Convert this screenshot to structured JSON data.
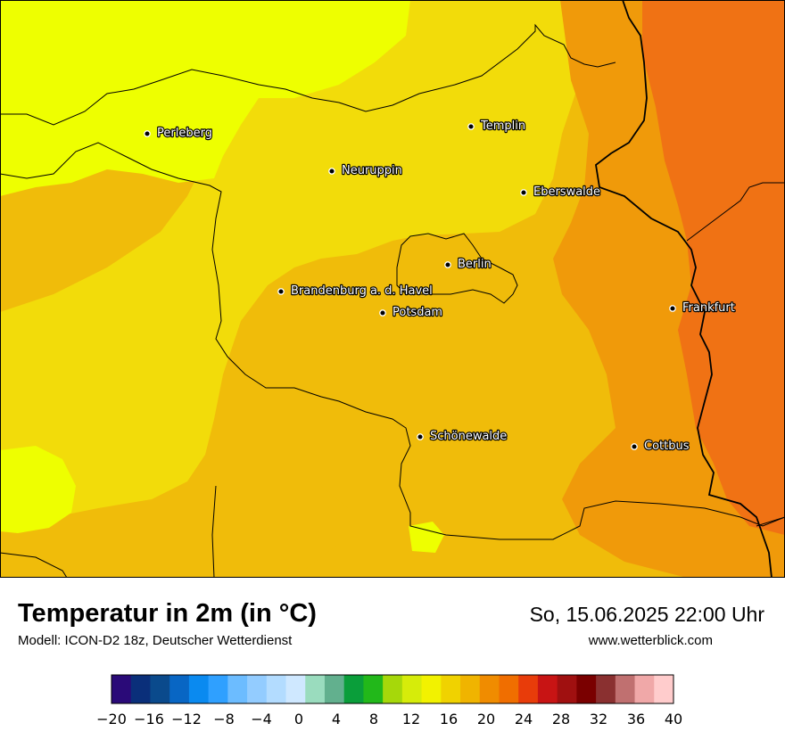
{
  "title": "Temperatur in 2m (in °C)",
  "subtitle": "Modell: ICON-D2 18z, Deutscher Wetterdienst",
  "datetime": "So, 15.06.2025 22:00 Uhr",
  "website": "www.wetterblick.com",
  "cities": [
    {
      "name": "Perleberg"
    },
    {
      "name": "Templin"
    },
    {
      "name": "Neuruppin"
    },
    {
      "name": "Eberswalde"
    },
    {
      "name": "Berlin"
    },
    {
      "name": "Brandenburg a. d. Havel"
    },
    {
      "name": "Potsdam"
    },
    {
      "name": "Frankfurt"
    },
    {
      "name": "Schönewalde"
    },
    {
      "name": "Cottbus"
    }
  ],
  "legend": {
    "min": -20,
    "max": 40,
    "step": 2,
    "tick_labels": [
      "−20",
      "−16",
      "−12",
      "−8",
      "−4",
      "0",
      "4",
      "8",
      "12",
      "16",
      "20",
      "24",
      "28",
      "32",
      "36",
      "40"
    ],
    "colors": [
      "#2a0a78",
      "#0a2f7a",
      "#0a4a8c",
      "#0866c4",
      "#0a8af0",
      "#2fa0ff",
      "#6cbcff",
      "#93ccff",
      "#b3dcff",
      "#cfe8ff",
      "#9adcbe",
      "#62b08e",
      "#0a9e3a",
      "#22b81a",
      "#a6d80a",
      "#d6ec0a",
      "#f2f200",
      "#f0d200",
      "#f0b400",
      "#f08c00",
      "#f06e00",
      "#e83c0a",
      "#c81414",
      "#a01010",
      "#7a0000",
      "#8a3030",
      "#c07070",
      "#f0a8a8",
      "#ffcccc"
    ]
  },
  "map_colors": {
    "t14_16": "#eeff00",
    "t16_18": "#f2dc0a",
    "t18_20": "#f0bc0a",
    "t20_22": "#f09a0a",
    "t22_24": "#f07214"
  }
}
